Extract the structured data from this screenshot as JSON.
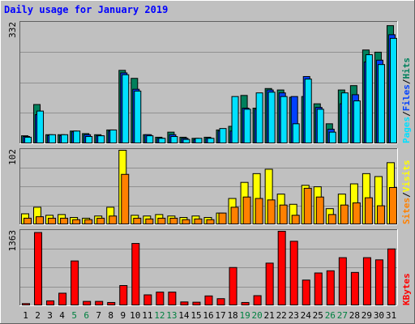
{
  "title": "Daily usage for January 2019",
  "colors": {
    "background": "#c0c0c0",
    "panel": "#c0c0c0",
    "grid": "#909090",
    "title": "#0000ff",
    "hits": "#00805c",
    "files": "#0040ff",
    "pages": "#00e0ff",
    "visits": "#ffff00",
    "sites": "#ff8000",
    "kbytes": "#ff0000",
    "weekend": "#008040",
    "weekday": "#000000"
  },
  "labels": {
    "pages": "Pages",
    "files": "Files",
    "hits": "Hits",
    "sites": "Sites",
    "visits": "Visits",
    "kbytes": "KBytes",
    "separator": "/"
  },
  "chart_data": [
    {
      "type": "bar",
      "panel": "hits-files-pages",
      "categories": [
        "1",
        "2",
        "3",
        "4",
        "5",
        "6",
        "7",
        "8",
        "9",
        "10",
        "11",
        "12",
        "13",
        "14",
        "15",
        "16",
        "17",
        "18",
        "19",
        "20",
        "21",
        "22",
        "23",
        "24",
        "25",
        "26",
        "27",
        "28",
        "29",
        "30",
        "31"
      ],
      "ymax_label": "332",
      "ylim": [
        0,
        332
      ],
      "series": [
        {
          "name": "Hits",
          "values": [
            22,
            108,
            25,
            25,
            35,
            28,
            25,
            38,
            202,
            180,
            25,
            18,
            32,
            18,
            15,
            18,
            38,
            48,
            133,
            98,
            152,
            148,
            128,
            130,
            110,
            55,
            148,
            160,
            258,
            252,
            325
          ]
        },
        {
          "name": "Files",
          "values": [
            20,
            80,
            23,
            22,
            33,
            25,
            22,
            35,
            195,
            150,
            25,
            15,
            25,
            15,
            12,
            15,
            35,
            35,
            98,
            95,
            148,
            140,
            130,
            185,
            100,
            40,
            110,
            135,
            225,
            230,
            300
          ]
        },
        {
          "name": "Pages",
          "values": [
            18,
            90,
            25,
            25,
            35,
            20,
            22,
            38,
            190,
            145,
            22,
            15,
            20,
            12,
            15,
            15,
            42,
            130,
            95,
            140,
            142,
            130,
            55,
            178,
            95,
            32,
            140,
            118,
            245,
            218,
            290
          ]
        }
      ]
    },
    {
      "type": "bar",
      "panel": "visits-sites",
      "categories": [
        "1",
        "2",
        "3",
        "4",
        "5",
        "6",
        "7",
        "8",
        "9",
        "10",
        "11",
        "12",
        "13",
        "14",
        "15",
        "16",
        "17",
        "18",
        "19",
        "20",
        "21",
        "22",
        "23",
        "24",
        "25",
        "26",
        "27",
        "28",
        "29",
        "30",
        "31"
      ],
      "ymax_label": "102",
      "ylim": [
        0,
        102
      ],
      "series": [
        {
          "name": "Visits",
          "values": [
            15,
            24,
            13,
            14,
            10,
            9,
            12,
            24,
            102,
            13,
            12,
            14,
            12,
            10,
            12,
            10,
            16,
            36,
            58,
            70,
            76,
            42,
            28,
            54,
            52,
            22,
            42,
            56,
            70,
            66,
            85
          ]
        },
        {
          "name": "Sites",
          "values": [
            9,
            11,
            9,
            9,
            7,
            7,
            9,
            12,
            69,
            9,
            8,
            9,
            9,
            7,
            8,
            7,
            16,
            24,
            38,
            36,
            34,
            27,
            13,
            50,
            38,
            14,
            27,
            30,
            37,
            26,
            51
          ]
        }
      ]
    },
    {
      "type": "bar",
      "panel": "kbytes",
      "categories": [
        "1",
        "2",
        "3",
        "4",
        "5",
        "6",
        "7",
        "8",
        "9",
        "10",
        "11",
        "12",
        "13",
        "14",
        "15",
        "16",
        "17",
        "18",
        "19",
        "20",
        "21",
        "22",
        "23",
        "24",
        "25",
        "26",
        "27",
        "28",
        "29",
        "30",
        "31"
      ],
      "ymax_label": "1363",
      "ylim": [
        0,
        1363
      ],
      "weekend_days": [
        "5",
        "6",
        "12",
        "13",
        "19",
        "20",
        "26",
        "27"
      ],
      "series": [
        {
          "name": "KBytes",
          "values": [
            40,
            1340,
            90,
            230,
            820,
            80,
            80,
            60,
            370,
            1140,
            200,
            250,
            250,
            70,
            65,
            180,
            130,
            700,
            60,
            185,
            780,
            1363,
            1180,
            470,
            600,
            640,
            880,
            610,
            880,
            840,
            1040
          ]
        }
      ]
    }
  ]
}
